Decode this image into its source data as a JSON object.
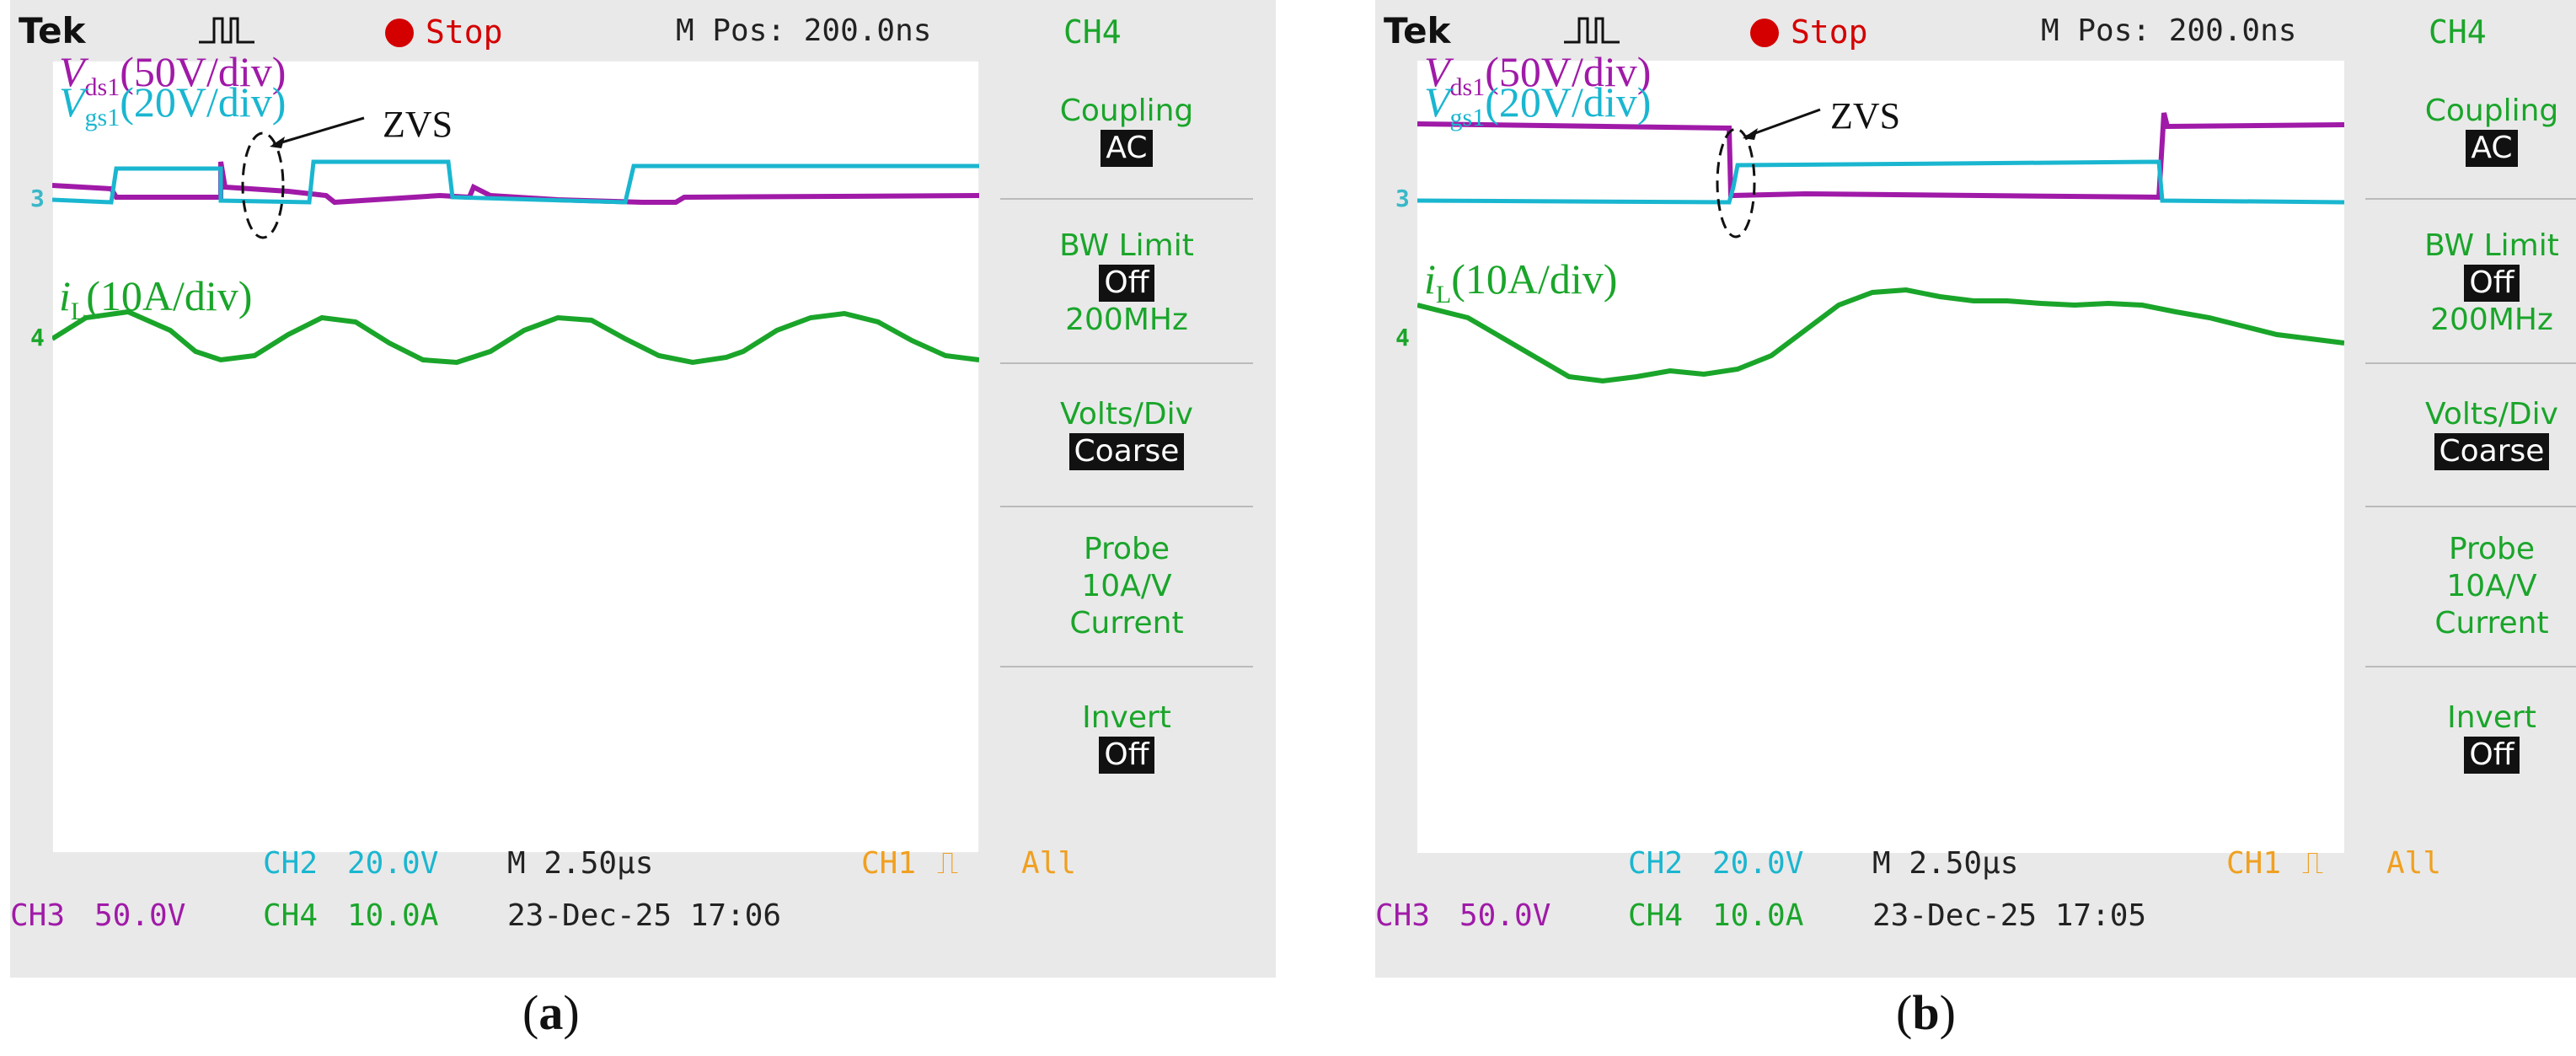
{
  "panels": [
    {
      "id": "a",
      "brand": "Tek",
      "status": "Stop",
      "mpos": "M Pos: 200.0ns",
      "selected_channel": "CH4",
      "vds_label": {
        "symbol": "V",
        "sub": "ds1",
        "scale": "(50V/div)"
      },
      "vgs_label": {
        "symbol": "V",
        "sub": "gs1",
        "scale": "(20V/div)"
      },
      "il_label": {
        "symbol": "i",
        "sub": "L",
        "scale": "(10A/div)"
      },
      "zvs": "ZVS",
      "ch3_marker": "3",
      "ch4_marker": "4",
      "menu": {
        "coupling_title": "Coupling",
        "coupling_value": "AC",
        "bw_title": "BW Limit",
        "bw_value": "Off",
        "bw_freq": "200MHz",
        "volts_title": "Volts/Div",
        "volts_value": "Coarse",
        "probe_title": "Probe",
        "probe_value": "10A/V",
        "probe_type": "Current",
        "invert_title": "Invert",
        "invert_value": "Off"
      },
      "bottom": {
        "ch2": "CH2",
        "ch2_value": "20.0V",
        "timebase": "M 2.50µs",
        "ch1": "CH1",
        "trig_all": "All",
        "ch3": "CH3",
        "ch3_value": "50.0V",
        "ch4": "CH4",
        "ch4_value": "10.0A",
        "datetime": "23-Dec-25 17:06"
      },
      "caption": "a"
    },
    {
      "id": "b",
      "brand": "Tek",
      "status": "Stop",
      "mpos": "M Pos: 200.0ns",
      "selected_channel": "CH4",
      "vds_label": {
        "symbol": "V",
        "sub": "ds1",
        "scale": "(50V/div)"
      },
      "vgs_label": {
        "symbol": "V",
        "sub": "gs1",
        "scale": "(20V/div)"
      },
      "il_label": {
        "symbol": "i",
        "sub": "L",
        "scale": "(10A/div)"
      },
      "zvs": "ZVS",
      "ch3_marker": "3",
      "ch4_marker": "4",
      "menu": {
        "coupling_title": "Coupling",
        "coupling_value": "AC",
        "bw_title": "BW Limit",
        "bw_value": "Off",
        "bw_freq": "200MHz",
        "volts_title": "Volts/Div",
        "volts_value": "Coarse",
        "probe_title": "Probe",
        "probe_value": "10A/V",
        "probe_type": "Current",
        "invert_title": "Invert",
        "invert_value": "Off"
      },
      "bottom": {
        "ch2": "CH2",
        "ch2_value": "20.0V",
        "timebase": "M 2.50µs",
        "ch1": "CH1",
        "trig_all": "All",
        "ch3": "CH3",
        "ch3_value": "50.0V",
        "ch4": "CH4",
        "ch4_value": "10.0A",
        "datetime": "23-Dec-25 17:05"
      },
      "caption": "b"
    }
  ],
  "colors": {
    "vds": "#a01aa8",
    "vgs": "#1ab6d0",
    "il": "#1aa52a",
    "status": "#d40000",
    "ch1": "#f0a020"
  }
}
